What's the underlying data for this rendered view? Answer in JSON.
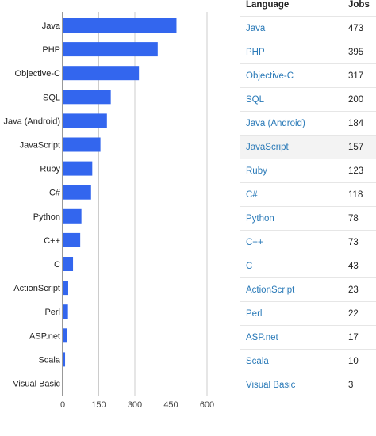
{
  "table": {
    "headers": {
      "language": "Language",
      "jobs": "Jobs"
    },
    "highlighted_row": 5,
    "link_color": "#2a7ab8",
    "rows": [
      {
        "language": "Java",
        "jobs": "473"
      },
      {
        "language": "PHP",
        "jobs": "395"
      },
      {
        "language": "Objective-C",
        "jobs": "317"
      },
      {
        "language": "SQL",
        "jobs": "200"
      },
      {
        "language": "Java (Android)",
        "jobs": "184"
      },
      {
        "language": "JavaScript",
        "jobs": "157"
      },
      {
        "language": "Ruby",
        "jobs": "123"
      },
      {
        "language": "C#",
        "jobs": "118"
      },
      {
        "language": "Python",
        "jobs": "78"
      },
      {
        "language": "C++",
        "jobs": "73"
      },
      {
        "language": "C",
        "jobs": "43"
      },
      {
        "language": "ActionScript",
        "jobs": "23"
      },
      {
        "language": "Perl",
        "jobs": "22"
      },
      {
        "language": "ASP.net",
        "jobs": "17"
      },
      {
        "language": "Scala",
        "jobs": "10"
      },
      {
        "language": "Visual Basic",
        "jobs": "3"
      }
    ]
  },
  "chart_data": {
    "type": "bar",
    "orientation": "horizontal",
    "categories": [
      "Java",
      "PHP",
      "Objective-C",
      "SQL",
      "Java (Android)",
      "JavaScript",
      "Ruby",
      "C#",
      "Python",
      "C++",
      "C",
      "ActionScript",
      "Perl",
      "ASP.net",
      "Scala",
      "Visual Basic"
    ],
    "values": [
      473,
      395,
      317,
      200,
      184,
      157,
      123,
      118,
      78,
      73,
      43,
      23,
      22,
      17,
      10,
      3
    ],
    "xlim": [
      0,
      600
    ],
    "x_ticks": [
      0,
      150,
      300,
      450,
      600
    ],
    "grid": true,
    "bar_color": "#3366ee",
    "title": "",
    "xlabel": "",
    "ylabel": ""
  }
}
